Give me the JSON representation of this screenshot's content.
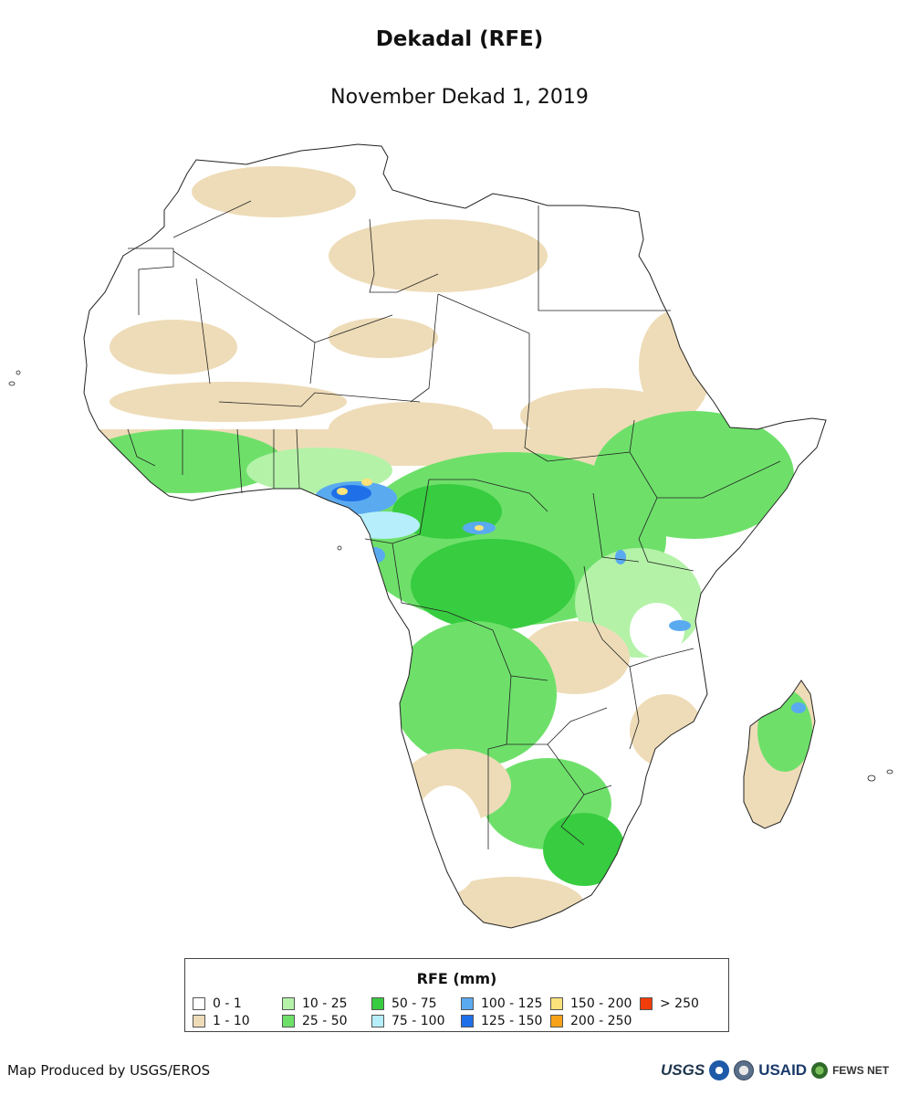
{
  "title": "Dekadal (RFE)",
  "subtitle": "November Dekad 1, 2019",
  "legend": {
    "title": "RFE (mm)",
    "items": [
      {
        "label": "0 - 1",
        "color": "#ffffff"
      },
      {
        "label": "1 - 10",
        "color": "#eedcb8"
      },
      {
        "label": "10 - 25",
        "color": "#b4f2a8"
      },
      {
        "label": "25 - 50",
        "color": "#6ee06a"
      },
      {
        "label": "50 - 75",
        "color": "#38cc40"
      },
      {
        "label": "75 - 100",
        "color": "#b6eefb"
      },
      {
        "label": "100 - 125",
        "color": "#5aaaf0"
      },
      {
        "label": "125 - 150",
        "color": "#1f70e8"
      },
      {
        "label": "150 - 200",
        "color": "#fbe27a"
      },
      {
        "label": "200 - 250",
        "color": "#f7a21a"
      },
      {
        "label": "> 250",
        "color": "#f23d0a"
      }
    ]
  },
  "credit": "Map Produced by USGS/EROS",
  "logos": {
    "usgs": "USGS",
    "usaid": "USAID",
    "fews": "FEWS NET"
  }
}
